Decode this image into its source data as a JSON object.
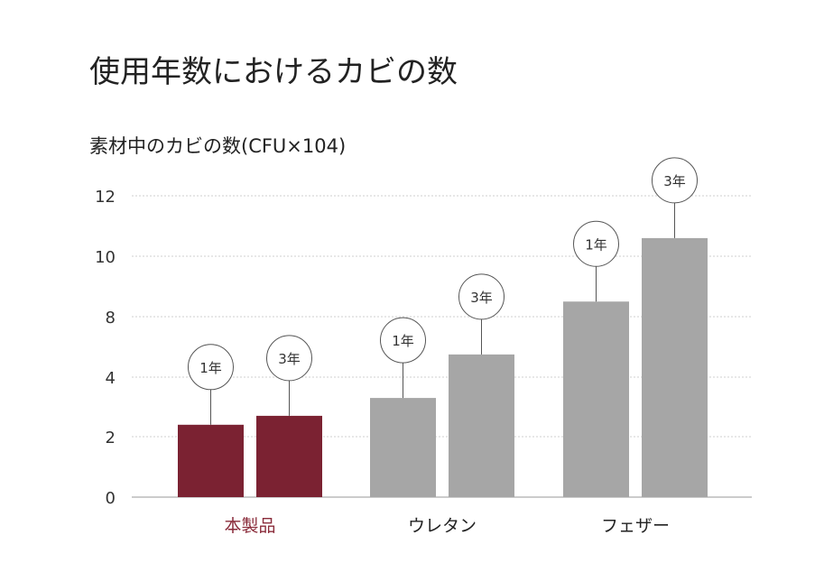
{
  "chart_data": {
    "type": "bar",
    "title": "使用年数におけるカビの数",
    "ylabel": "素材中のカビの数(CFU×104)",
    "xlabel": "",
    "ylim": [
      0,
      12
    ],
    "yticks": [
      "0",
      "2",
      "4",
      "8",
      "10",
      "12"
    ],
    "grid": true,
    "colors": {
      "highlight": "#7b2232",
      "default": "#a6a6a6",
      "highlight_label": "#8a2b3a"
    },
    "groups": [
      {
        "category": "本製品",
        "highlight": true,
        "bars": [
          {
            "label": "1年",
            "value": 2.4
          },
          {
            "label": "3年",
            "value": 2.7
          }
        ]
      },
      {
        "category": "ウレタン",
        "highlight": false,
        "bars": [
          {
            "label": "1年",
            "value": 3.3
          },
          {
            "label": "3年",
            "value": 5.5
          }
        ]
      },
      {
        "category": "フェザー",
        "highlight": false,
        "bars": [
          {
            "label": "1年",
            "value": 8.5
          },
          {
            "label": "3年",
            "value": 10.6
          }
        ]
      }
    ]
  }
}
